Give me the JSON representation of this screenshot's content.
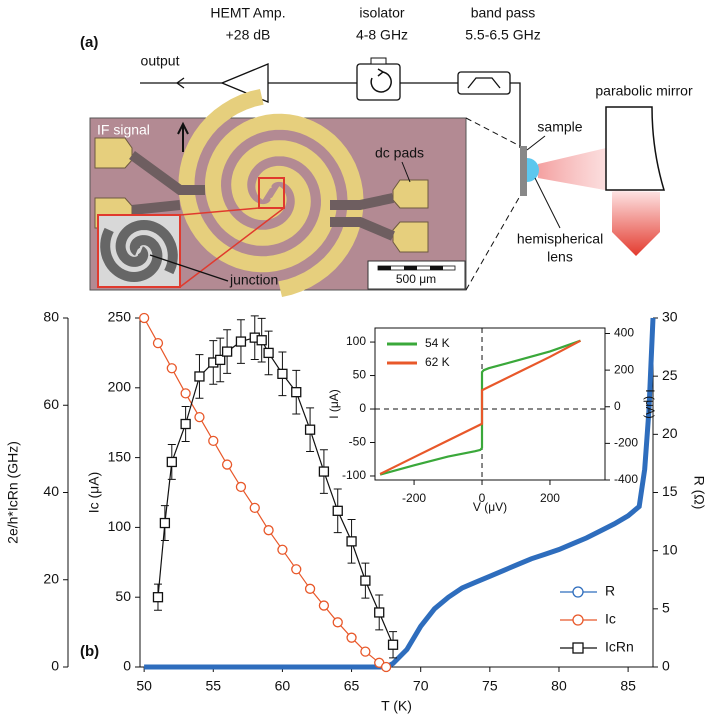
{
  "diagram": {
    "panel_label": "(a)",
    "amp": {
      "name": "HEMT Amp.",
      "gain": "+28 dB"
    },
    "isolator": {
      "name": "isolator",
      "band": "4-8 GHz"
    },
    "band_pass": {
      "name": "band pass",
      "band": "5.5-6.5 GHz"
    },
    "output": "output",
    "mirror": "parabolic mirror",
    "sample": "sample",
    "lens": [
      "hemispherical",
      "lens"
    ],
    "photo": {
      "if_signal": "IF signal",
      "dc_pads": "dc pads",
      "junction": "junction",
      "scale_bar": "500 μm"
    }
  },
  "chart_data": [
    {
      "type": "line",
      "panel_label": "(b)",
      "xlabel": "T (K)",
      "ylabel": "Ic (μA)",
      "y2label": "R (Ω)",
      "y3label": "2e/h*IcRn (GHz)",
      "xlim": [
        49.7,
        86.8
      ],
      "xticks": [
        50,
        55,
        60,
        65,
        70,
        75,
        80,
        85
      ],
      "ylim": [
        0,
        250
      ],
      "yticks": [
        0,
        50,
        100,
        150,
        200,
        250
      ],
      "y2lim": [
        0,
        30
      ],
      "y2ticks": [
        0,
        5,
        10,
        15,
        20,
        25,
        30
      ],
      "y3lim": [
        0,
        80
      ],
      "y3ticks": [
        0,
        20,
        40,
        60,
        80
      ],
      "legend": "lower right",
      "series": [
        {
          "name": "R",
          "color": "#2e6dbd",
          "marker": "circle",
          "axis": "y2",
          "x": [
            50,
            55,
            60,
            65,
            67.5,
            68,
            69,
            70,
            71,
            72,
            73,
            74,
            75,
            76,
            77,
            78,
            79,
            80,
            81,
            82,
            83,
            84,
            85,
            85.8,
            86.2,
            86.5,
            86.8
          ],
          "values": [
            0,
            0,
            0,
            0,
            0,
            0.3,
            1.5,
            3.5,
            5,
            6,
            6.8,
            7.3,
            7.8,
            8.3,
            8.8,
            9.3,
            9.7,
            10.1,
            10.6,
            11.1,
            11.7,
            12.3,
            13,
            13.8,
            17,
            22,
            30
          ]
        },
        {
          "name": "Ic",
          "color": "#e8582a",
          "marker": "circle",
          "axis": "y",
          "x": [
            50,
            51,
            52,
            53,
            54,
            55,
            56,
            57,
            58,
            59,
            60,
            61,
            62,
            63,
            64,
            65,
            66,
            67,
            67.5
          ],
          "values": [
            250,
            232,
            214,
            196,
            179,
            162,
            145,
            129,
            114,
            98,
            84,
            70,
            56,
            44,
            32,
            21,
            11,
            3,
            0
          ]
        },
        {
          "name": "IcRn",
          "color": "#111111",
          "marker": "square",
          "axis": "y3",
          "x": [
            51,
            51.5,
            52,
            53,
            54,
            55,
            55.5,
            56,
            57,
            58,
            58.5,
            59,
            60,
            61,
            62,
            63,
            64,
            65,
            66,
            67,
            68
          ],
          "values": [
            16,
            33,
            47,
            55.7,
            66.6,
            69.8,
            70.4,
            72.3,
            74.6,
            75.5,
            74.9,
            72,
            67.2,
            63,
            54.4,
            44.8,
            35.8,
            28.8,
            19.8,
            12.5,
            5.1
          ],
          "errors": [
            3,
            4,
            4,
            4,
            5,
            5,
            5,
            5,
            5,
            5,
            5,
            5,
            5,
            5,
            5,
            5,
            5,
            5,
            4,
            4,
            3
          ]
        }
      ]
    },
    {
      "type": "line",
      "xlabel": "V (μV)",
      "ylabel": "I (μA)",
      "y2label": "I (μA)",
      "xlim": [
        -315,
        362
      ],
      "xticks": [
        -200,
        0,
        200
      ],
      "ylim": [
        -106,
        121
      ],
      "yticks": [
        -100,
        -50,
        0,
        50,
        100
      ],
      "y2lim": [
        -400,
        430
      ],
      "y2ticks": [
        -400,
        -200,
        0,
        200,
        400
      ],
      "zero_lines": true,
      "legend": "upper left",
      "series": [
        {
          "name": "54 K",
          "color": "#3aa83a",
          "axis": "y",
          "x": [
            -300,
            -200,
            -100,
            -20,
            -5,
            0,
            0,
            5,
            20,
            100,
            200,
            290
          ],
          "values": [
            -98,
            -84,
            -71,
            -63,
            -61,
            -58,
            55,
            58,
            61,
            72,
            86,
            102
          ]
        },
        {
          "name": "62 K",
          "color": "#e8582a",
          "axis": "y",
          "x": [
            -300,
            -200,
            -100,
            -20,
            0,
            0,
            20,
            100,
            200,
            290
          ],
          "values": [
            -97,
            -72,
            -47,
            -27,
            -22,
            28,
            33,
            53,
            78,
            102
          ]
        }
      ]
    }
  ]
}
